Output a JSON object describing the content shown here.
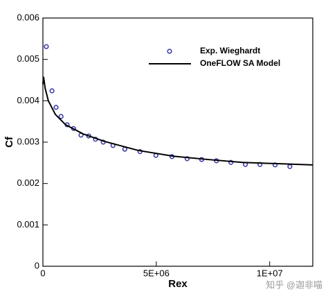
{
  "chart_data": {
    "type": "line",
    "x_label": "Rex",
    "y_label": "Cf",
    "xlim": [
      0,
      11900000
    ],
    "ylim": [
      0,
      0.006
    ],
    "xticks": [
      0,
      {
        "value": 5000000,
        "label": "5E+06"
      },
      {
        "value": 10000000,
        "label": "1E+07"
      }
    ],
    "yticks": [
      0,
      0.001,
      0.002,
      0.003,
      0.004,
      0.005,
      0.006
    ],
    "legend": "upper right",
    "series": [
      {
        "name": "Exp. Wieghardt",
        "color": "#3a3aaa",
        "mode": "markers",
        "x": [
          150000,
          400000,
          580000,
          800000,
          1070000,
          1350000,
          1680000,
          2020000,
          2320000,
          2660000,
          3090000,
          3610000,
          4280000,
          4980000,
          5690000,
          6360000,
          7000000,
          7650000,
          8290000,
          8930000,
          9570000,
          10240000,
          10890000
        ],
        "values": [
          0.00531,
          0.00424,
          0.00384,
          0.00362,
          0.00342,
          0.00333,
          0.00317,
          0.00315,
          0.00307,
          0.003,
          0.00292,
          0.00283,
          0.00277,
          0.00268,
          0.00265,
          0.0026,
          0.00258,
          0.00255,
          0.00251,
          0.00246,
          0.00246,
          0.00245,
          0.00241
        ]
      },
      {
        "name": "OneFLOW SA Model",
        "color": "#000000",
        "mode": "line",
        "x": [
          0,
          30000,
          100000,
          240000,
          550000,
          1000000,
          1770000,
          2700000,
          4200000,
          5750000,
          7280000,
          8800000,
          10340000,
          11900000
        ],
        "values": [
          0.0044,
          0.00458,
          0.0043,
          0.004,
          0.00367,
          0.00342,
          0.0032,
          0.00302,
          0.0028,
          0.00266,
          0.00258,
          0.00251,
          0.00248,
          0.00245
        ]
      }
    ],
    "watermark": "知乎 @迦非喵"
  }
}
